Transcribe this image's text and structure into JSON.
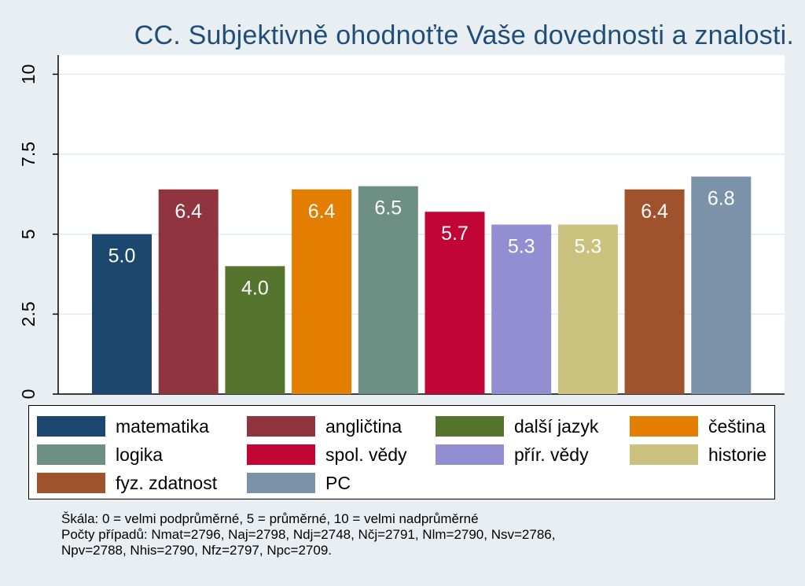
{
  "chart_data": {
    "type": "bar",
    "title": "CC. Subjektivně ohodnoťte Vaše dovednosti a znalosti.",
    "xlabel": "",
    "ylabel": "",
    "ylim": [
      0,
      10.6
    ],
    "yticks": [
      0,
      2.5,
      5,
      7.5,
      10
    ],
    "ytick_labels": [
      "0",
      "2.5",
      "5",
      "7.5",
      "10"
    ],
    "grid": true,
    "legend_position": "bottom",
    "series": [
      {
        "name": "matematika",
        "value": 5.0,
        "label": "5.0",
        "color": "#1c4870"
      },
      {
        "name": "angličtina",
        "value": 6.4,
        "label": "6.4",
        "color": "#90353f"
      },
      {
        "name": "další jazyk",
        "value": 4.0,
        "label": "4.0",
        "color": "#55752f"
      },
      {
        "name": "čeština",
        "value": 6.4,
        "label": "6.4",
        "color": "#e37e00"
      },
      {
        "name": "logika",
        "value": 6.5,
        "label": "6.5",
        "color": "#6e8f84"
      },
      {
        "name": "spol. vědy",
        "value": 5.7,
        "label": "5.7",
        "color": "#c10534"
      },
      {
        "name": "přír. vědy",
        "value": 5.3,
        "label": "5.3",
        "color": "#938dd2"
      },
      {
        "name": "historie",
        "value": 5.3,
        "label": "5.3",
        "color": "#cac27e"
      },
      {
        "name": "fyz. zdatnost",
        "value": 6.4,
        "label": "6.4",
        "color": "#a0522d"
      },
      {
        "name": "PC",
        "value": 6.8,
        "label": "6.8",
        "color": "#7b92a8"
      }
    ]
  },
  "notes": [
    "Škála: 0 = velmi podprůměrné, 5 = průměrné, 10 = velmi nadprůměrné",
    "Počty případů: Nmat=2796, Naj=2798, Ndj=2748, Nčj=2791, Nlm=2790, Nsv=2786,",
    "Npv=2788, Nhis=2790, Nfz=2797, Npc=2709."
  ]
}
